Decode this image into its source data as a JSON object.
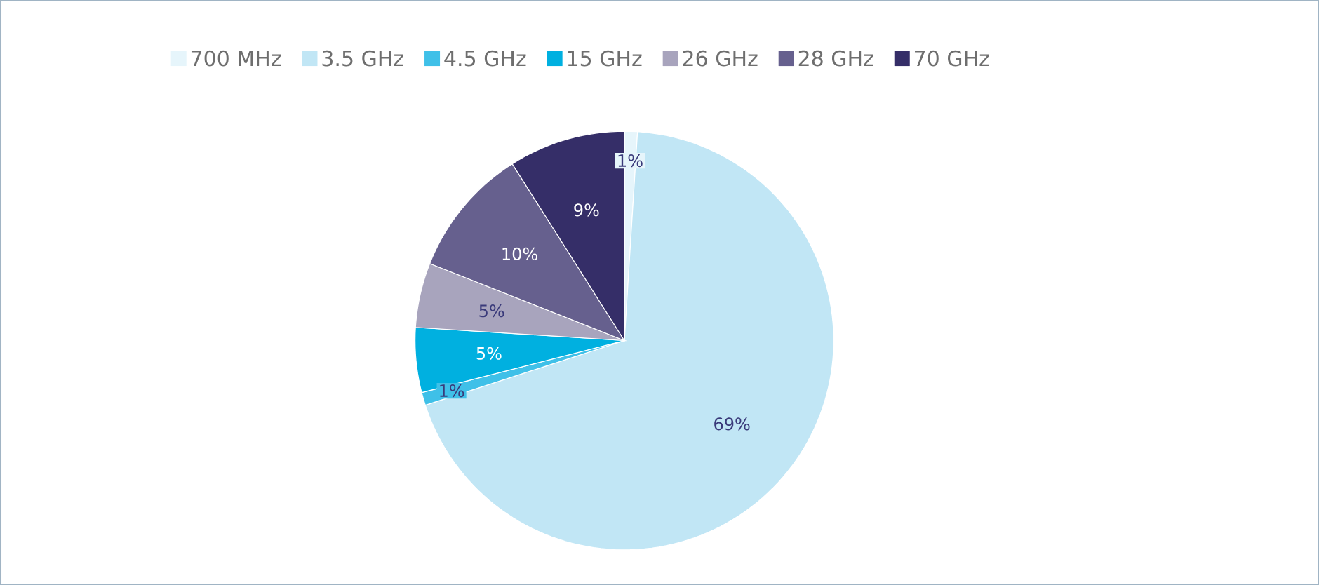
{
  "chart_data": {
    "type": "pie",
    "categories": [
      "700 MHz",
      "3.5 GHz",
      "4.5 GHz",
      "15 GHz",
      "26 GHz",
      "28 GHz",
      "70 GHz"
    ],
    "values": [
      1,
      69,
      1,
      5,
      5,
      10,
      9
    ],
    "value_labels": [
      "1%",
      "69%",
      "1%",
      "5%",
      "5%",
      "10%",
      "9%"
    ],
    "colors": [
      "#e6f5fb",
      "#c1e6f5",
      "#3fc0e8",
      "#00b0e0",
      "#a8a4bd",
      "#66608e",
      "#352e68"
    ],
    "legend": "top"
  }
}
